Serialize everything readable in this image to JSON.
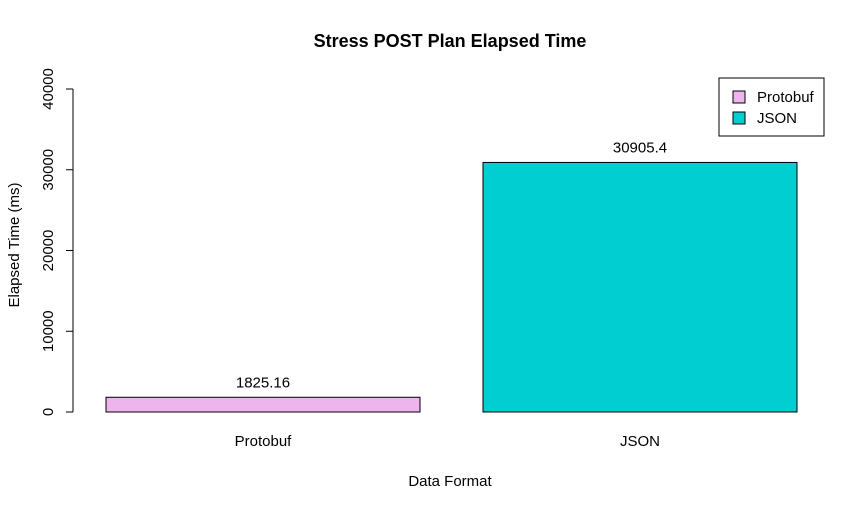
{
  "chart_data": {
    "type": "bar",
    "title": "Stress POST Plan Elapsed Time",
    "xlabel": "Data Format",
    "ylabel": "Elapsed Time (ms)",
    "categories": [
      "Protobuf",
      "JSON"
    ],
    "values": [
      1825.16,
      30905.4
    ],
    "value_labels": [
      "1825.16",
      "30905.4"
    ],
    "colors": [
      "#EEB4EE",
      "#00CED1"
    ],
    "ylim": [
      0,
      40000
    ],
    "yticks": [
      0,
      10000,
      20000,
      30000,
      40000
    ],
    "ytick_labels": [
      "0",
      "10000",
      "20000",
      "30000",
      "40000"
    ],
    "legend": {
      "position": "top-right",
      "entries": [
        {
          "label": "Protobuf",
          "color": "#EEB4EE"
        },
        {
          "label": "JSON",
          "color": "#00CED1"
        }
      ]
    },
    "grid": false
  }
}
